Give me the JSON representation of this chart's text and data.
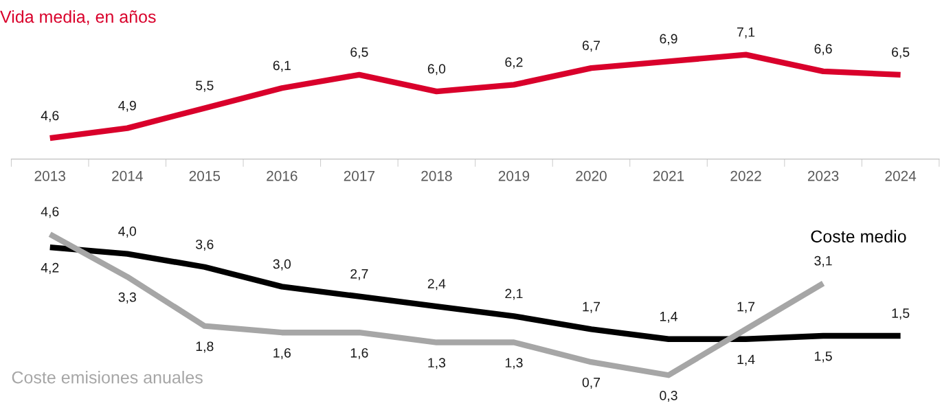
{
  "chart_data": [
    {
      "type": "line",
      "title": "Vida media, en años",
      "categories": [
        "2013",
        "2014",
        "2015",
        "2016",
        "2017",
        "2018",
        "2019",
        "2020",
        "2021",
        "2022",
        "2023",
        "2024"
      ],
      "series": [
        {
          "color": "#d9002b",
          "values": [
            4.6,
            4.9,
            5.5,
            6.1,
            6.5,
            6.0,
            6.2,
            6.7,
            6.9,
            7.1,
            6.6,
            6.5
          ],
          "value_labels": [
            "4,6",
            "4,9",
            "5,5",
            "6,1",
            "6,5",
            "6,0",
            "6,2",
            "6,7",
            "6,9",
            "7,1",
            "6,6",
            "6,5"
          ]
        }
      ],
      "legend": false,
      "grid": false,
      "tick_labels": "x"
    },
    {
      "type": "line",
      "categories": [
        "2013",
        "2014",
        "2015",
        "2016",
        "2017",
        "2018",
        "2019",
        "2020",
        "2021",
        "2022",
        "2023",
        "2024"
      ],
      "series": [
        {
          "name": "Coste medio",
          "color": "#000000",
          "values": [
            4.2,
            4.0,
            3.6,
            3.0,
            2.7,
            2.4,
            2.1,
            1.7,
            1.4,
            1.4,
            1.5,
            1.5
          ],
          "value_labels": [
            "4,2",
            "4,0",
            "3,6",
            "3,0",
            "2,7",
            "2,4",
            "2,1",
            "1,7",
            "1,4",
            "1,4",
            "1,5",
            "1,5"
          ]
        },
        {
          "name": "Coste emisiones anuales",
          "color": "#a6a6a6",
          "values": [
            4.6,
            3.3,
            1.8,
            1.6,
            1.6,
            1.3,
            1.3,
            0.7,
            0.3,
            1.7,
            3.1,
            null
          ],
          "value_labels": [
            "4,6",
            "3,3",
            "1,8",
            "1,6",
            "1,6",
            "1,3",
            "1,3",
            "0,7",
            "0,3",
            "1,7",
            "3,1",
            null
          ]
        }
      ],
      "legend": false,
      "grid": false,
      "tick_labels": false
    }
  ]
}
